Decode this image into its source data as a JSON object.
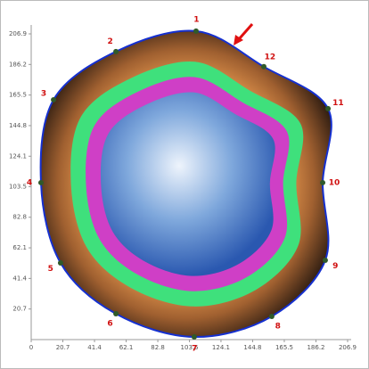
{
  "chart_data": {
    "type": "scatter",
    "x": [
      107.8,
      55.4,
      14.6,
      6.4,
      19.2,
      55.4,
      106.6,
      157.3,
      192.3,
      190.6,
      194.1,
      152.1
    ],
    "y": [
      208.8,
      194.9,
      162.3,
      106.2,
      51.9,
      17.5,
      1.8,
      15.7,
      53.7,
      106.2,
      156.3,
      184.7
    ],
    "point_labels": [
      "1",
      "2",
      "3",
      "4",
      "5",
      "6",
      "7",
      "8",
      "9",
      "10",
      "11",
      "12"
    ],
    "color": "#2f5a2a",
    "outline_color": "#1530d0",
    "label_color": "#d01010",
    "xlim": [
      0,
      206.9
    ],
    "ylim": [
      0,
      206.9
    ],
    "xticks": [
      0,
      20.7,
      41.4,
      62.1,
      82.8,
      103.5,
      124.1,
      144.8,
      165.5,
      186.2,
      206.9
    ],
    "yticks": [
      20.7,
      41.4,
      62.1,
      82.8,
      103.5,
      124.1,
      144.8,
      165.5,
      186.2,
      206.9
    ]
  }
}
